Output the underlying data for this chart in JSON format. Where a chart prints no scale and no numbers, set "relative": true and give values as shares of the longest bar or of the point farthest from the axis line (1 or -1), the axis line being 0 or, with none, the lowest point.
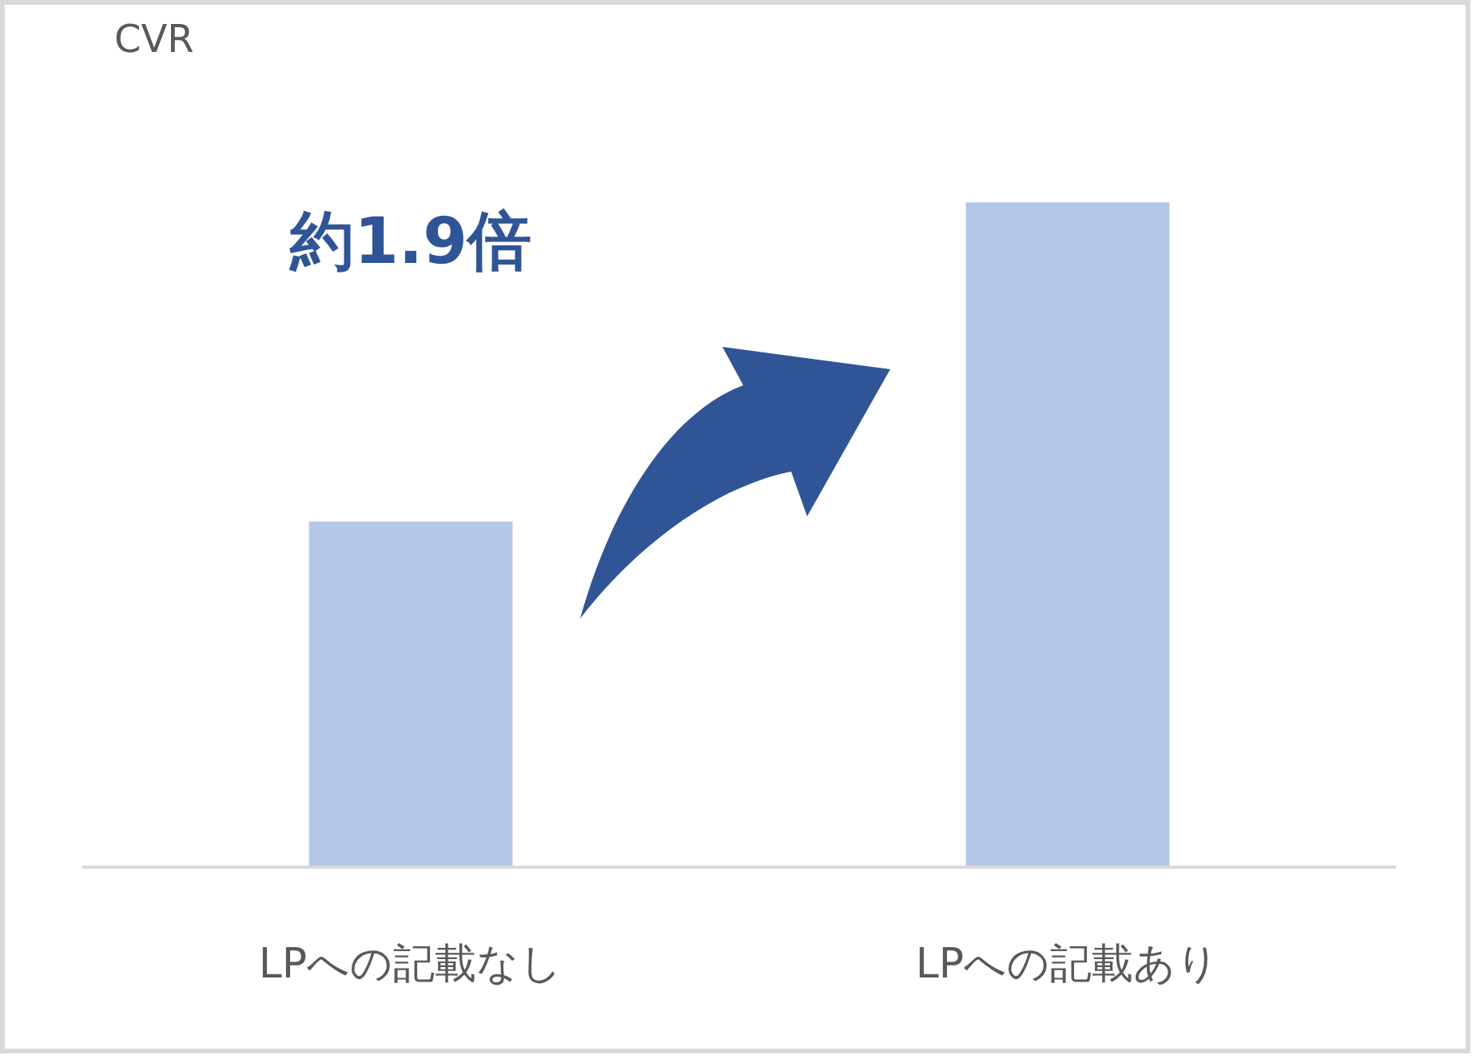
{
  "chart_data": {
    "type": "bar",
    "title": "CVR",
    "categories": [
      "LPへの記載なし",
      "LPへの記載あり"
    ],
    "values": [
      0.52,
      1
    ],
    "color": "#b4c7e7",
    "relative": true,
    "annotations": [
      "約1.9倍"
    ]
  }
}
